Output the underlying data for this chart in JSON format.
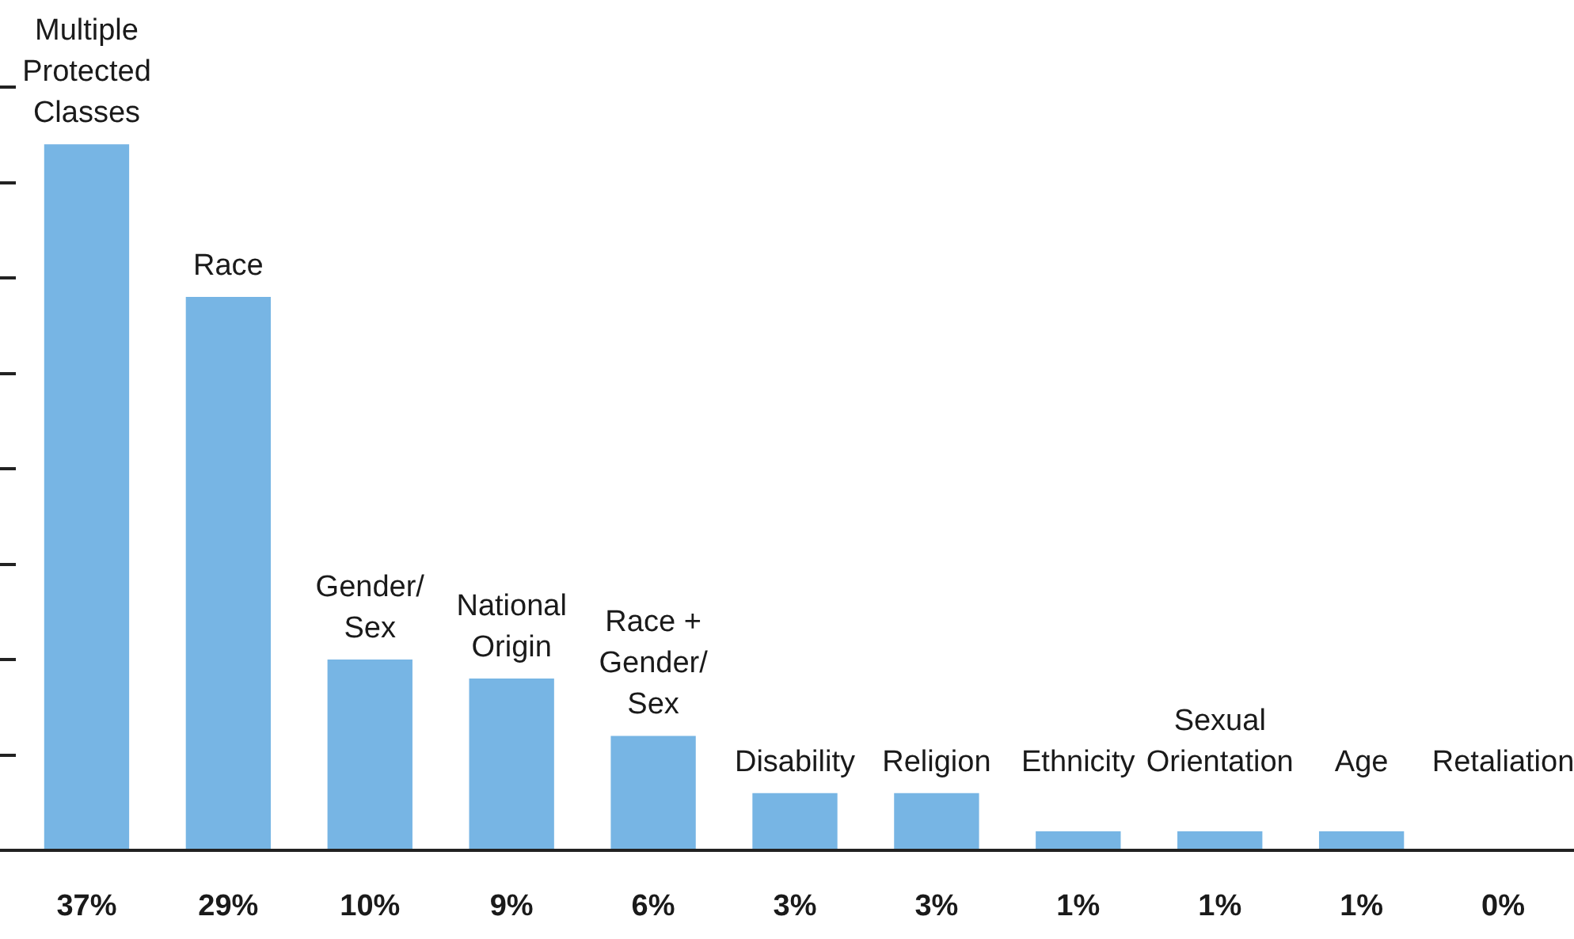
{
  "chart_data": {
    "type": "bar",
    "categories": [
      "Multiple Protected Classes",
      "Race",
      "Gender/Sex",
      "National Origin",
      "Race + Gender/Sex",
      "Disability",
      "Religion",
      "Ethnicity",
      "Sexual Orientation",
      "Age",
      "Retaliation"
    ],
    "values": [
      37,
      29,
      10,
      9,
      6,
      3,
      3,
      1,
      1,
      1,
      0
    ],
    "value_labels": [
      "37%",
      "29%",
      "10%",
      "9%",
      "6%",
      "3%",
      "3%",
      "1%",
      "1%",
      "1%",
      "0%"
    ],
    "color": "#77b5e4",
    "grid": false,
    "legend": false
  }
}
